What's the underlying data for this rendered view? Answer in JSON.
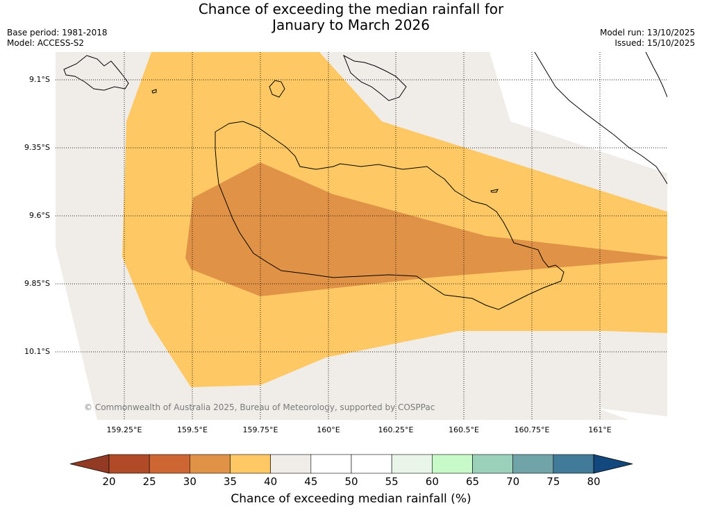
{
  "title": {
    "line1": "Chance of exceeding the median rainfall for",
    "line2": "January to March 2026"
  },
  "meta": {
    "base_period": "Base period: 1981-2018",
    "model": "Model: ACCESS-S2",
    "model_run": "Model run: 13/10/2025",
    "issued": "Issued: 15/10/2025"
  },
  "map": {
    "latitude_labels": [
      "9.1°S",
      "9.35°S",
      "9.6°S",
      "9.85°S",
      "10.1°S"
    ],
    "longitude_labels": [
      "159.25°E",
      "159.5°E",
      "159.75°E",
      "160°E",
      "160.25°E",
      "160.5°E",
      "160.75°E",
      "161°E"
    ],
    "copyright": "© Commonwealth of Australia 2025, Bureau of Meteorology, supported by COSPPac"
  },
  "colorbar": {
    "title": "Chance of exceeding median rainfall (%)",
    "ticks": [
      "20",
      "25",
      "30",
      "35",
      "40",
      "45",
      "50",
      "55",
      "60",
      "65",
      "70",
      "75",
      "80"
    ],
    "colors": [
      "#b04a27",
      "#cd6633",
      "#e09247",
      "#fec965",
      "#f0ece7",
      "#ffffff",
      "#ffffff",
      "#eaf5ea",
      "#c8f9c8",
      "#9bd0bb",
      "#70a4a8",
      "#427b99"
    ],
    "under_color": "#923a23",
    "over_color": "#13487f"
  }
}
